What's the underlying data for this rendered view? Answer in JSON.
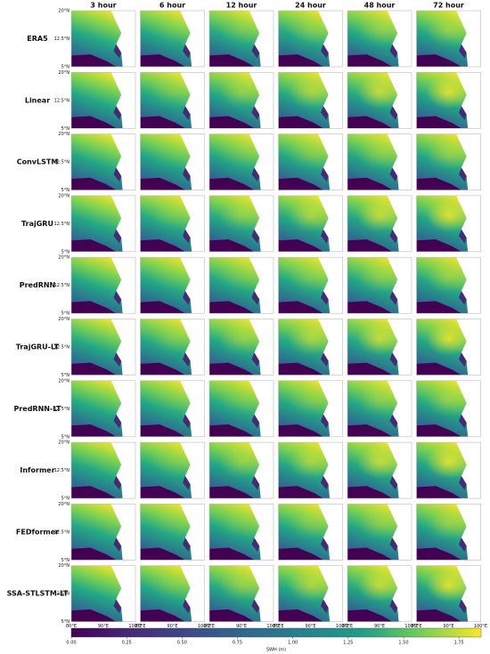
{
  "columns": [
    "3 hour",
    "6 hour",
    "12 hour",
    "24 hour",
    "48 hour",
    "72 hour"
  ],
  "rows": [
    "ERA5",
    "Linear",
    "ConvLSTM",
    "TrajGRU",
    "PredRNN",
    "TrajGRU-LT",
    "PredRNN-LT",
    "Informer",
    "FEDformer",
    "SSA-STLSTM-LT"
  ],
  "lat_ticks": [
    "20°N",
    "12.5°N",
    "5°N"
  ],
  "lon_ticks": [
    "80°E",
    "90°E",
    "100°E"
  ],
  "colorbar": {
    "label": "SWH (m)",
    "lim": [
      0,
      1.85
    ],
    "ticks": [
      {
        "value": 0,
        "label": "0.00"
      },
      {
        "value": 0.25,
        "label": "0.25"
      },
      {
        "value": 0.5,
        "label": "0.50"
      },
      {
        "value": 0.75,
        "label": "0.75"
      },
      {
        "value": 1,
        "label": "1.00"
      },
      {
        "value": 1.25,
        "label": "1.25"
      },
      {
        "value": 1.5,
        "label": "1.50"
      },
      {
        "value": 1.75,
        "label": "1.75"
      }
    ]
  }
}
